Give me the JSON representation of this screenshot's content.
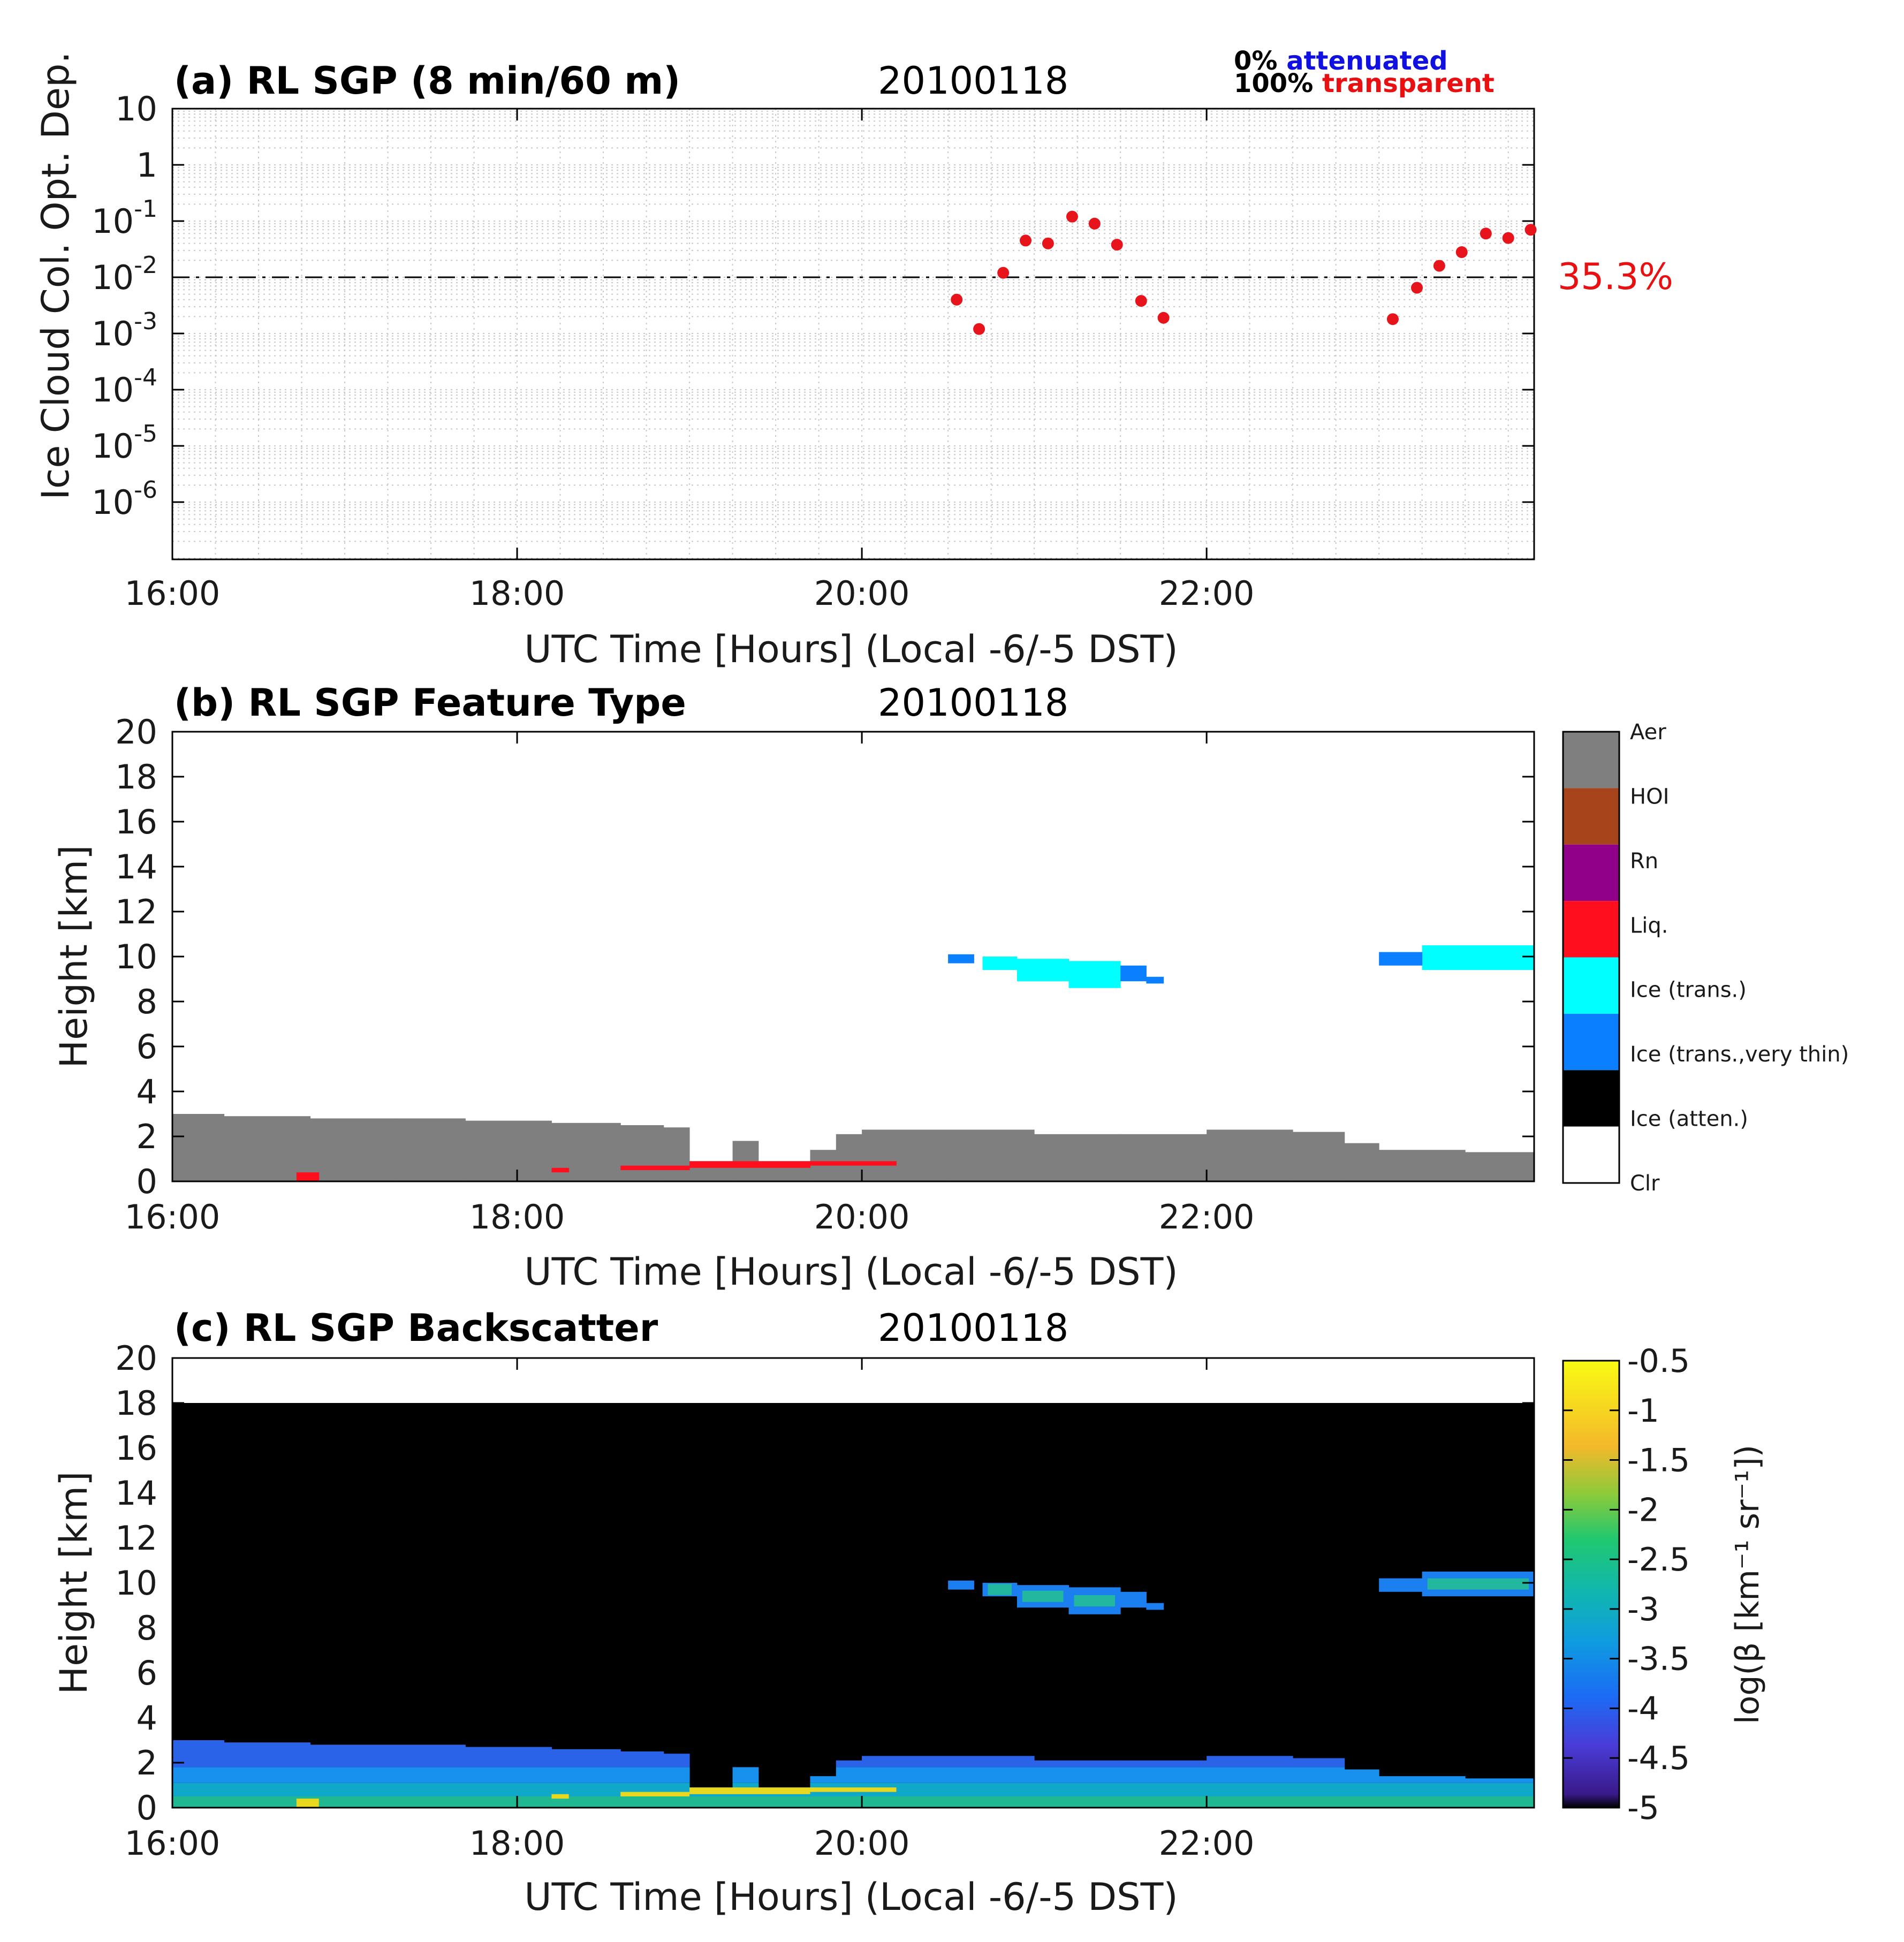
{
  "colors": {
    "point": "#e8141b",
    "attenuated": "#1010e0",
    "transparent": "#e81010",
    "aerosol": "#7f7f7f",
    "liquid": "#ff0f1e",
    "ice_trans": "#00ffff",
    "ice_thin": "#0a7fff",
    "background_c": "#000000"
  },
  "panel_a": {
    "title": "(a) RL SGP (8 min/60 m)",
    "date": "20100118",
    "legend": {
      "zero_pct": "0%",
      "attenuated": "attenuated",
      "hundred_pct": "100%",
      "transparent": "transparent"
    },
    "percent_annotation": "35.3%",
    "ylabel": "Ice Cloud Col. Opt. Dep.",
    "xlabel": "UTC Time [Hours] (Local -6/-5 DST)",
    "y_ticks": [
      {
        "base": "10",
        "exp": ""
      },
      {
        "base": "1",
        "exp": ""
      },
      {
        "base": "10",
        "exp": "-1"
      },
      {
        "base": "10",
        "exp": "-2"
      },
      {
        "base": "10",
        "exp": "-3"
      },
      {
        "base": "10",
        "exp": "-4"
      },
      {
        "base": "10",
        "exp": "-5"
      },
      {
        "base": "10",
        "exp": "-6"
      }
    ],
    "x_ticks": [
      "16:00",
      "18:00",
      "20:00",
      "22:00"
    ]
  },
  "panel_b": {
    "title": "(b) RL SGP Feature Type",
    "date": "20100118",
    "ylabel": "Height [km]",
    "xlabel": "UTC Time [Hours] (Local -6/-5 DST)",
    "y_ticks": [
      "0",
      "2",
      "4",
      "6",
      "8",
      "10",
      "12",
      "14",
      "16",
      "18",
      "20"
    ],
    "x_ticks": [
      "16:00",
      "18:00",
      "20:00",
      "22:00"
    ],
    "colorbar_labels": [
      "Aer",
      "HOI",
      "Rn",
      "Liq.",
      "Ice (trans.)",
      "Ice (trans.,very thin)",
      "Ice (atten.)",
      "Clr"
    ]
  },
  "panel_c": {
    "title": "(c) RL SGP Backscatter",
    "date": "20100118",
    "ylabel": "Height [km]",
    "xlabel": "UTC Time [Hours] (Local -6/-5 DST)",
    "y_ticks": [
      "0",
      "2",
      "4",
      "6",
      "8",
      "10",
      "12",
      "14",
      "16",
      "18",
      "20"
    ],
    "x_ticks": [
      "16:00",
      "18:00",
      "20:00",
      "22:00"
    ],
    "colorbar_ticks": [
      "-0.5",
      "-1",
      "-1.5",
      "-2",
      "-2.5",
      "-3",
      "-3.5",
      "-4",
      "-4.5",
      "-5"
    ],
    "colorbar_label": "log(β [km⁻¹ sr⁻¹])"
  },
  "chart_data": [
    {
      "type": "scatter",
      "title": "(a) RL SGP (8 min/60 m)",
      "ylabel": "Ice Cloud Col. Opt. Dep.",
      "xlabel": "UTC Time [Hours] (Local -6/-5 DST)",
      "yscale": "log",
      "ylim": [
        1e-07,
        10
      ],
      "xlim": [
        16,
        23.9
      ],
      "grid": true,
      "reference_line": 0.01,
      "points": [
        {
          "x": 20.55,
          "y": 0.004
        },
        {
          "x": 20.68,
          "y": 0.0012
        },
        {
          "x": 20.82,
          "y": 0.012
        },
        {
          "x": 20.95,
          "y": 0.045
        },
        {
          "x": 21.08,
          "y": 0.04
        },
        {
          "x": 21.22,
          "y": 0.12
        },
        {
          "x": 21.35,
          "y": 0.09
        },
        {
          "x": 21.48,
          "y": 0.038
        },
        {
          "x": 21.62,
          "y": 0.0038
        },
        {
          "x": 21.75,
          "y": 0.0019
        },
        {
          "x": 23.08,
          "y": 0.0018
        },
        {
          "x": 23.22,
          "y": 0.0065
        },
        {
          "x": 23.35,
          "y": 0.016
        },
        {
          "x": 23.48,
          "y": 0.028
        },
        {
          "x": 23.62,
          "y": 0.06
        },
        {
          "x": 23.75,
          "y": 0.05
        },
        {
          "x": 23.88,
          "y": 0.07
        }
      ]
    },
    {
      "type": "heatmap",
      "title": "(b) RL SGP Feature Type",
      "ylabel": "Height [km]",
      "xlabel": "UTC Time [Hours] (Local -6/-5 DST)",
      "xlim": [
        16,
        23.9
      ],
      "ylim": [
        0,
        20
      ],
      "categories": [
        "Aer",
        "HOI",
        "Rn",
        "Liq.",
        "Ice (trans.)",
        "Ice (trans.,very thin)",
        "Ice (atten.)",
        "Clr"
      ],
      "aerosol_top_km": [
        {
          "x0": 16.0,
          "x1": 16.3,
          "top": 3.0
        },
        {
          "x0": 16.3,
          "x1": 16.8,
          "top": 2.9
        },
        {
          "x0": 16.8,
          "x1": 17.3,
          "top": 2.8
        },
        {
          "x0": 17.3,
          "x1": 17.7,
          "top": 2.8
        },
        {
          "x0": 17.7,
          "x1": 18.2,
          "top": 2.7
        },
        {
          "x0": 18.2,
          "x1": 18.6,
          "top": 2.6
        },
        {
          "x0": 18.6,
          "x1": 18.85,
          "top": 2.5
        },
        {
          "x0": 18.85,
          "x1": 19.0,
          "top": 2.4
        },
        {
          "x0": 19.0,
          "x1": 19.25,
          "top": 0.8
        },
        {
          "x0": 19.25,
          "x1": 19.4,
          "top": 1.8
        },
        {
          "x0": 19.4,
          "x1": 19.7,
          "top": 0.8
        },
        {
          "x0": 19.7,
          "x1": 19.85,
          "top": 1.4
        },
        {
          "x0": 19.85,
          "x1": 20.0,
          "top": 2.1
        },
        {
          "x0": 20.0,
          "x1": 20.5,
          "top": 2.3
        },
        {
          "x0": 20.5,
          "x1": 21.0,
          "top": 2.3
        },
        {
          "x0": 21.0,
          "x1": 21.5,
          "top": 2.1
        },
        {
          "x0": 21.5,
          "x1": 22.0,
          "top": 2.1
        },
        {
          "x0": 22.0,
          "x1": 22.5,
          "top": 2.3
        },
        {
          "x0": 22.5,
          "x1": 22.8,
          "top": 2.2
        },
        {
          "x0": 22.8,
          "x1": 23.0,
          "top": 1.7
        },
        {
          "x0": 23.0,
          "x1": 23.5,
          "top": 1.4
        },
        {
          "x0": 23.5,
          "x1": 23.9,
          "top": 1.3
        }
      ],
      "liquid_layers": [
        {
          "x0": 16.72,
          "x1": 16.85,
          "bottom": 0.0,
          "top": 0.4
        },
        {
          "x0": 18.2,
          "x1": 18.3,
          "bottom": 0.4,
          "top": 0.6
        },
        {
          "x0": 18.6,
          "x1": 19.0,
          "bottom": 0.5,
          "top": 0.7
        },
        {
          "x0": 19.0,
          "x1": 19.7,
          "bottom": 0.6,
          "top": 0.9
        },
        {
          "x0": 19.7,
          "x1": 20.2,
          "bottom": 0.7,
          "top": 0.9
        }
      ],
      "ice_trans_layers": [
        {
          "x0": 20.7,
          "x1": 20.9,
          "bottom": 9.4,
          "top": 10.0
        },
        {
          "x0": 20.9,
          "x1": 21.2,
          "bottom": 8.9,
          "top": 9.9
        },
        {
          "x0": 21.2,
          "x1": 21.5,
          "bottom": 8.6,
          "top": 9.8
        },
        {
          "x0": 23.25,
          "x1": 23.9,
          "bottom": 9.4,
          "top": 10.5
        }
      ],
      "ice_thin_layers": [
        {
          "x0": 20.5,
          "x1": 20.65,
          "bottom": 9.7,
          "top": 10.1
        },
        {
          "x0": 21.5,
          "x1": 21.65,
          "bottom": 8.9,
          "top": 9.6
        },
        {
          "x0": 21.65,
          "x1": 21.75,
          "bottom": 8.8,
          "top": 9.1
        },
        {
          "x0": 23.0,
          "x1": 23.25,
          "bottom": 9.6,
          "top": 10.2
        }
      ]
    },
    {
      "type": "heatmap",
      "title": "(c) RL SGP Backscatter",
      "ylabel": "Height [km]",
      "xlabel": "UTC Time [Hours] (Local -6/-5 DST)",
      "xlim": [
        16,
        23.9
      ],
      "ylim": [
        0,
        20
      ],
      "data_top_km": 18,
      "colorbar_label": "log(β [km⁻¹ sr⁻¹])",
      "colorbar_range": [
        -5,
        -0.5
      ]
    }
  ]
}
